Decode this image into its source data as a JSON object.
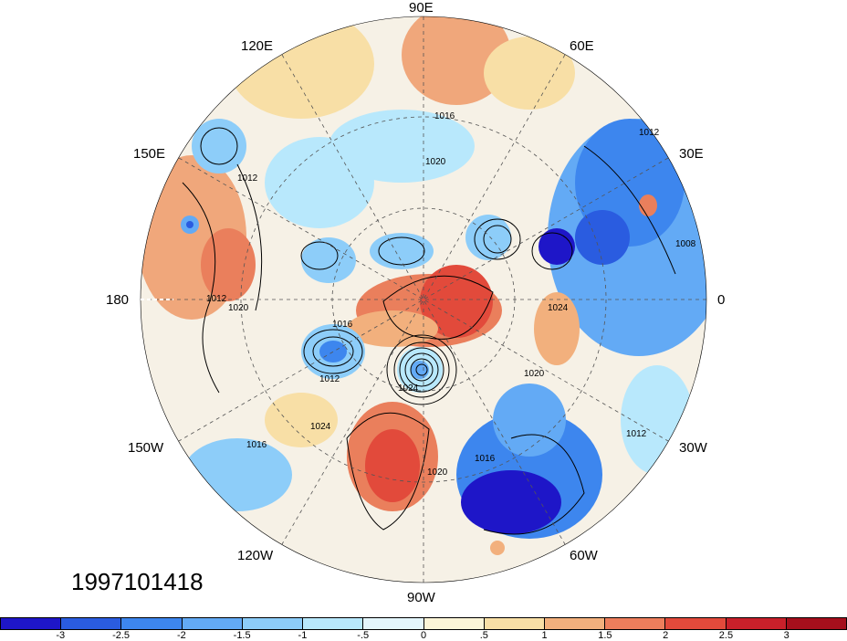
{
  "map": {
    "timestamp": "1997101418",
    "longitude_labels": {
      "lon_90E": "90E",
      "lon_120E": "120E",
      "lon_60E": "60E",
      "lon_150E": "150E",
      "lon_30E": "30E",
      "lon_180": "180",
      "lon_0": "0",
      "lon_150W": "150W",
      "lon_30W": "30W",
      "lon_120W": "120W",
      "lon_60W": "60W",
      "lon_90W": "90W"
    },
    "contour_labels": [
      "1016",
      "1020",
      "1012",
      "1012",
      "1012",
      "1008",
      "1020",
      "1016",
      "1012",
      "1024",
      "1020",
      "1024",
      "1016",
      "1012",
      "1016",
      "1020",
      "1024"
    ],
    "colorbar": {
      "colors": [
        "#1e16c8",
        "#2a5ce0",
        "#3d86ee",
        "#63aaf5",
        "#8dcdf9",
        "#b8e8fc",
        "#e4f6fc",
        "#fbf5d8",
        "#f8dfa6",
        "#f2b07d",
        "#ed7e5c",
        "#e24a3b",
        "#c8202a",
        "#a50f1c"
      ],
      "tick_labels": [
        "-3",
        "-2.5",
        "-2",
        "-1.5",
        "-1",
        "-.5",
        "0",
        ".5",
        "1",
        "1.5",
        "2",
        "2.5",
        "3"
      ]
    }
  }
}
